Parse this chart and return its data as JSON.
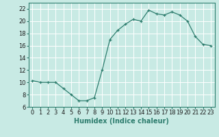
{
  "x": [
    0,
    1,
    2,
    3,
    4,
    5,
    6,
    7,
    8,
    9,
    10,
    11,
    12,
    13,
    14,
    15,
    16,
    17,
    18,
    19,
    20,
    21,
    22,
    23
  ],
  "y": [
    10.3,
    10.0,
    10.0,
    10.0,
    9.0,
    8.0,
    7.0,
    7.0,
    7.5,
    12.0,
    17.0,
    18.5,
    19.5,
    20.3,
    20.0,
    21.8,
    21.2,
    21.0,
    21.5,
    21.0,
    20.0,
    17.5,
    16.2,
    16.0
  ],
  "xlabel": "Humidex (Indice chaleur)",
  "line_color": "#2e7d6e",
  "bg_color": "#c8eae4",
  "grid_color": "#b0d8d0",
  "ylim": [
    6,
    23
  ],
  "xlim": [
    -0.5,
    23.5
  ],
  "yticks": [
    6,
    8,
    10,
    12,
    14,
    16,
    18,
    20,
    22
  ],
  "xticks": [
    0,
    1,
    2,
    3,
    4,
    5,
    6,
    7,
    8,
    9,
    10,
    11,
    12,
    13,
    14,
    15,
    16,
    17,
    18,
    19,
    20,
    21,
    22,
    23
  ],
  "tick_fontsize": 6,
  "xlabel_fontsize": 7
}
